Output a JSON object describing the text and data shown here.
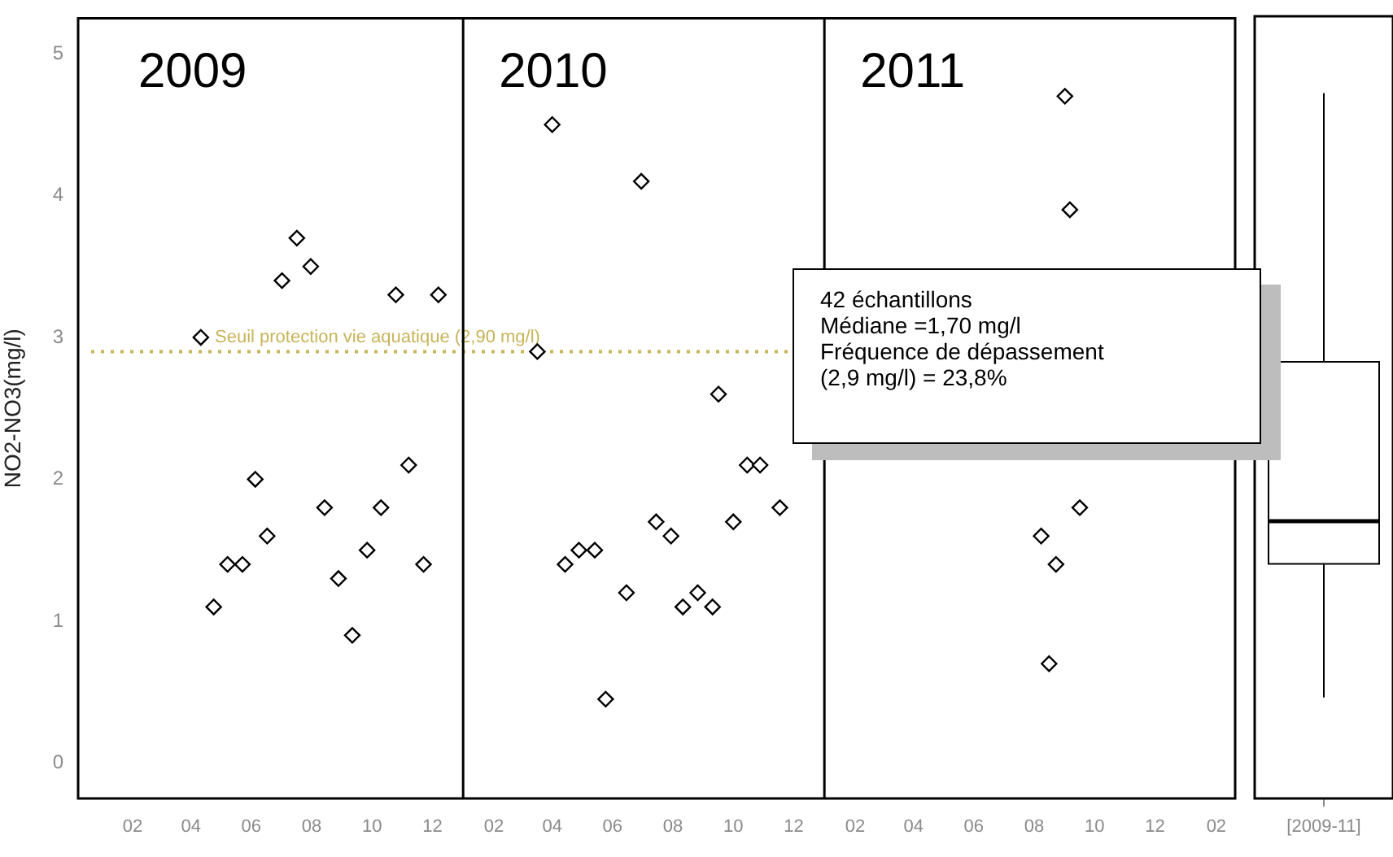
{
  "chart_data": [
    {
      "type": "scatter",
      "ylabel": "NO2-NO3(mg/l)",
      "color": "#000000",
      "marker": "diamond",
      "grid": false,
      "legend": false,
      "x": [
        "2009-04-11",
        "2009-04-24",
        "2009-05-08",
        "2009-05-23",
        "2009-06-05",
        "2009-06-17",
        "2009-07-02",
        "2009-07-17",
        "2009-07-31",
        "2009-08-14",
        "2009-08-28",
        "2009-09-11",
        "2009-09-26",
        "2009-10-10",
        "2009-10-25",
        "2009-11-07",
        "2009-11-22",
        "2009-12-07",
        "2010-03-17",
        "2010-04-01",
        "2010-04-14",
        "2010-04-28",
        "2010-05-14",
        "2010-05-25",
        "2010-06-15",
        "2010-06-30",
        "2010-07-15",
        "2010-07-30",
        "2010-08-11",
        "2010-08-26",
        "2010-09-10",
        "2010-09-16",
        "2010-10-01",
        "2010-10-15",
        "2010-10-28",
        "2010-11-17",
        "2011-08-08",
        "2011-08-16",
        "2011-08-23",
        "2011-09-01",
        "2011-09-06",
        "2011-09-16"
      ],
      "values": [
        3.0,
        1.1,
        1.4,
        1.4,
        2.0,
        1.6,
        3.4,
        3.7,
        3.5,
        1.8,
        1.3,
        0.9,
        1.5,
        1.8,
        3.3,
        2.1,
        1.4,
        3.3,
        2.9,
        4.5,
        1.4,
        1.5,
        1.5,
        0.45,
        1.2,
        4.1,
        1.7,
        1.6,
        1.1,
        1.2,
        1.1,
        2.6,
        1.7,
        2.1,
        2.1,
        1.8,
        1.6,
        0.7,
        1.4,
        4.7,
        3.9,
        1.8
      ],
      "xlim": [
        "2008-12-08",
        "2012-02-20"
      ],
      "xticks": [
        {
          "value": "2009-02",
          "label": "02"
        },
        {
          "value": "2009-04",
          "label": "04"
        },
        {
          "value": "2009-06",
          "label": "06"
        },
        {
          "value": "2009-08",
          "label": "08"
        },
        {
          "value": "2009-10",
          "label": "10"
        },
        {
          "value": "2009-12",
          "label": "12"
        },
        {
          "value": "2010-02",
          "label": "02"
        },
        {
          "value": "2010-04",
          "label": "04"
        },
        {
          "value": "2010-06",
          "label": "06"
        },
        {
          "value": "2010-08",
          "label": "08"
        },
        {
          "value": "2010-10",
          "label": "10"
        },
        {
          "value": "2010-12",
          "label": "12"
        },
        {
          "value": "2011-02",
          "label": "02"
        },
        {
          "value": "2011-04",
          "label": "04"
        },
        {
          "value": "2011-06",
          "label": "06"
        },
        {
          "value": "2011-08",
          "label": "08"
        },
        {
          "value": "2011-10",
          "label": "10"
        },
        {
          "value": "2011-12",
          "label": "12"
        },
        {
          "value": "2012-02",
          "label": "02"
        }
      ],
      "ylim": [
        -0.25,
        5.25
      ],
      "yticks": [
        0,
        1,
        2,
        3,
        4,
        5
      ],
      "ref_lines": [
        {
          "axis": "y",
          "value": 2.9,
          "label": "Seuil protection vie aquatique (2,90 mg/l)",
          "color": "#c8b45a",
          "line_style": "dotted"
        },
        {
          "axis": "x",
          "value": "2010-01-01",
          "color": "#000000",
          "line_style": "solid"
        },
        {
          "axis": "x",
          "value": "2011-01-01",
          "color": "#000000",
          "line_style": "solid"
        }
      ],
      "annotations": [
        "2009",
        "2010",
        "2011",
        "42 échantillons\nMédiane =1,70 mg/l\nFréquence de dépassement\n(2,9 mg/l) = 23,8%"
      ]
    },
    {
      "type": "box",
      "categories": [
        "[2009-11]"
      ],
      "color": "#000000",
      "boxes": [
        {
          "low": 0.46,
          "q1": 1.4,
          "median": 1.7,
          "q3": 2.82,
          "high": 4.71
        }
      ],
      "ylim": [
        -0.25,
        5.25
      ],
      "yticks": [
        0,
        1,
        2,
        3,
        4,
        5
      ],
      "tick_labels": "x"
    }
  ]
}
